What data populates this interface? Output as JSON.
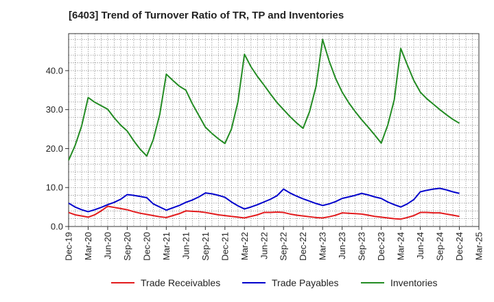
{
  "chart_data": {
    "type": "line",
    "title": "[6403]  Trend of Turnover Ratio of TR, TP and Inventories",
    "xlabel": "",
    "ylabel": "",
    "ylim": [
      0,
      49.5
    ],
    "yticks": [
      "0.0",
      "10.0",
      "20.0",
      "30.0",
      "40.0"
    ],
    "ytick_values": [
      0,
      10,
      20,
      30,
      40
    ],
    "xtick_labels": [
      "Dec-19",
      "Mar-20",
      "Jun-20",
      "Sep-20",
      "Dec-20",
      "Mar-21",
      "Jun-21",
      "Sep-21",
      "Dec-21",
      "Mar-22",
      "Jun-22",
      "Sep-22",
      "Dec-22",
      "Mar-23",
      "Jun-23",
      "Sep-23",
      "Dec-23",
      "Mar-24",
      "Jun-24",
      "Sep-24",
      "Dec-24",
      "Mar-25"
    ],
    "x_start": "Dec-19",
    "grid": true,
    "legend_position": "bottom",
    "x": [
      "Dec-19",
      "Jan-20",
      "Feb-20",
      "Mar-20",
      "Apr-20",
      "May-20",
      "Jun-20",
      "Jul-20",
      "Aug-20",
      "Sep-20",
      "Oct-20",
      "Nov-20",
      "Dec-20",
      "Jan-21",
      "Feb-21",
      "Mar-21",
      "Apr-21",
      "May-21",
      "Jun-21",
      "Jul-21",
      "Aug-21",
      "Sep-21",
      "Oct-21",
      "Nov-21",
      "Dec-21",
      "Jan-22",
      "Feb-22",
      "Mar-22",
      "Apr-22",
      "May-22",
      "Jun-22",
      "Jul-22",
      "Aug-22",
      "Sep-22",
      "Oct-22",
      "Nov-22",
      "Dec-22",
      "Jan-23",
      "Feb-23",
      "Mar-23",
      "Apr-23",
      "May-23",
      "Jun-23",
      "Jul-23",
      "Aug-23",
      "Sep-23",
      "Oct-23",
      "Nov-23",
      "Dec-23",
      "Jan-24",
      "Feb-24",
      "Mar-24",
      "Apr-24",
      "May-24",
      "Jun-24",
      "Jul-24",
      "Aug-24",
      "Sep-24",
      "Oct-24",
      "Nov-24",
      "Dec-24"
    ],
    "series": [
      {
        "name": "Trade Receivables",
        "color": "#e31a1c",
        "values": [
          3.6,
          3.0,
          2.7,
          2.4,
          3.0,
          4.0,
          5.2,
          4.9,
          4.6,
          4.3,
          3.8,
          3.4,
          3.1,
          2.8,
          2.5,
          2.3,
          2.8,
          3.3,
          4.0,
          3.9,
          3.8,
          3.6,
          3.3,
          3.0,
          2.8,
          2.6,
          2.4,
          2.2,
          2.6,
          3.0,
          3.6,
          3.6,
          3.7,
          3.6,
          3.2,
          2.9,
          2.7,
          2.5,
          2.3,
          2.2,
          2.5,
          2.9,
          3.5,
          3.4,
          3.3,
          3.2,
          2.9,
          2.6,
          2.4,
          2.2,
          2.0,
          1.9,
          2.3,
          2.8,
          3.6,
          3.6,
          3.5,
          3.5,
          3.2,
          2.9,
          2.6
        ]
      },
      {
        "name": "Trade Payables",
        "color": "#0000cc",
        "values": [
          6.0,
          5.0,
          4.3,
          3.8,
          4.3,
          4.9,
          5.6,
          6.2,
          7.0,
          8.2,
          8.0,
          7.7,
          7.4,
          5.8,
          5.0,
          4.2,
          4.8,
          5.4,
          6.2,
          6.8,
          7.6,
          8.6,
          8.4,
          8.0,
          7.5,
          6.3,
          5.3,
          4.5,
          5.0,
          5.6,
          6.3,
          7.0,
          7.9,
          9.6,
          8.6,
          7.8,
          7.1,
          6.5,
          5.9,
          5.4,
          5.8,
          6.4,
          7.2,
          7.6,
          8.0,
          8.5,
          8.1,
          7.6,
          7.2,
          6.3,
          5.6,
          5.0,
          5.8,
          6.9,
          8.9,
          9.3,
          9.6,
          9.8,
          9.4,
          8.9,
          8.5
        ]
      },
      {
        "name": "Inventories",
        "color": "#228b22",
        "values": [
          17.0,
          20.8,
          25.8,
          33.1,
          31.9,
          31.0,
          30.1,
          27.9,
          26.0,
          24.5,
          22.0,
          19.8,
          18.1,
          22.3,
          28.8,
          39.1,
          37.5,
          36.0,
          35.0,
          31.5,
          28.5,
          25.5,
          23.9,
          22.5,
          21.3,
          25.0,
          32.0,
          44.2,
          41.0,
          38.5,
          36.3,
          34.0,
          31.8,
          30.0,
          28.2,
          26.6,
          25.2,
          29.5,
          36.0,
          48.0,
          42.5,
          38.0,
          34.5,
          31.8,
          29.5,
          27.4,
          25.5,
          23.5,
          21.4,
          26.0,
          32.5,
          45.7,
          41.5,
          37.5,
          34.5,
          32.8,
          31.4,
          30.0,
          28.7,
          27.5,
          26.5
        ]
      }
    ]
  }
}
